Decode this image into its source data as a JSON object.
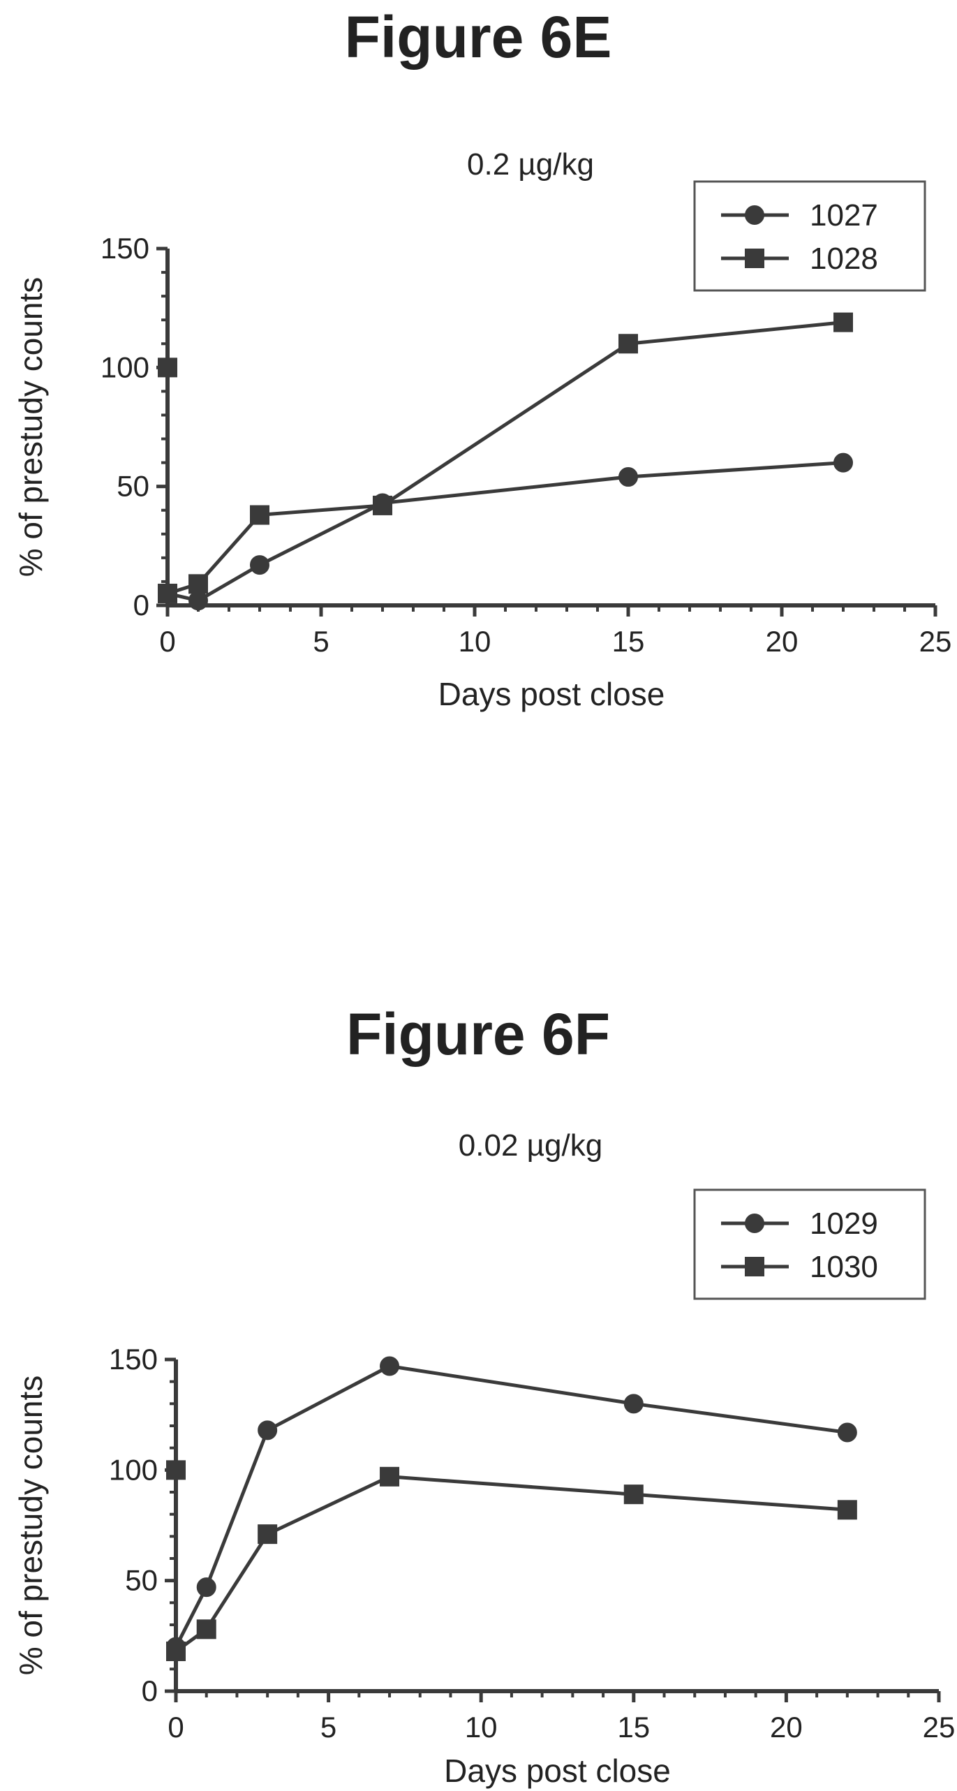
{
  "chart_data": [
    {
      "type": "line",
      "figure_label": "Figure 6E",
      "title": "0.2 µg/kg",
      "xlabel": "Days post close",
      "ylabel": "% of prestudy counts",
      "xlim": [
        0,
        25
      ],
      "ylim": [
        0,
        150
      ],
      "xticks": [
        "0",
        "5",
        "10",
        "15",
        "20",
        "25"
      ],
      "yticks": [
        "0",
        "50",
        "100",
        "150"
      ],
      "grid": false,
      "legend_position": "top-right",
      "series": [
        {
          "name": "1027",
          "marker": "circle",
          "x": [
            0,
            0,
            1,
            3,
            7,
            15,
            22
          ],
          "y": [
            100,
            5,
            2,
            17,
            43,
            54,
            60
          ]
        },
        {
          "name": "1028",
          "marker": "square",
          "x": [
            0,
            0,
            1,
            3,
            7,
            15,
            22
          ],
          "y": [
            100,
            5,
            9,
            38,
            42,
            110,
            119
          ]
        }
      ]
    },
    {
      "type": "line",
      "figure_label": "Figure 6F",
      "title": "0.02 µg/kg",
      "xlabel": "Days post close",
      "ylabel": "% of prestudy counts",
      "xlim": [
        0,
        25
      ],
      "ylim": [
        0,
        150
      ],
      "xticks": [
        "0",
        "5",
        "10",
        "15",
        "20",
        "25"
      ],
      "yticks": [
        "0",
        "50",
        "100",
        "150"
      ],
      "grid": false,
      "legend_position": "top-right",
      "series": [
        {
          "name": "1029",
          "marker": "circle",
          "x": [
            0,
            0,
            1,
            3,
            7,
            15,
            22
          ],
          "y": [
            100,
            20,
            47,
            118,
            147,
            130,
            117
          ]
        },
        {
          "name": "1030",
          "marker": "square",
          "x": [
            0,
            0,
            1,
            3,
            7,
            15,
            22
          ],
          "y": [
            100,
            18,
            28,
            71,
            97,
            89,
            82
          ]
        }
      ]
    }
  ]
}
